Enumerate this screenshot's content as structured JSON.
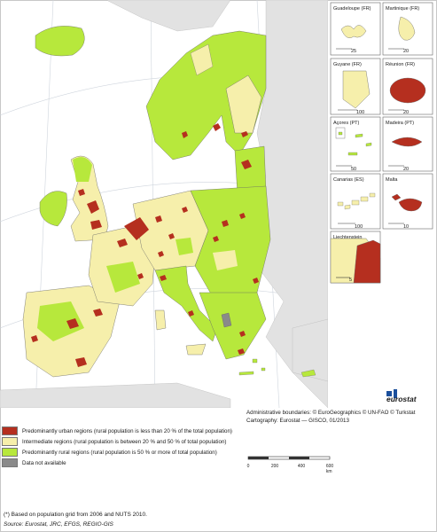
{
  "colors": {
    "urban": "#b52f1f",
    "intermediate": "#f6efab",
    "rural": "#b7e83c",
    "na": "#8a8a8a",
    "non_eu": "#e2e2e2",
    "sea": "#ffffff",
    "graticule": "#cfd5dd"
  },
  "insets": [
    {
      "label": "Guadeloupe (FR)",
      "scale_max": "25"
    },
    {
      "label": "Martinique (FR)",
      "scale_max": "20"
    },
    {
      "label": "Guyane (FR)",
      "scale_max": "100"
    },
    {
      "label": "Réunion (FR)",
      "scale_max": "20"
    },
    {
      "label": "Açores (PT)",
      "scale_max": "50"
    },
    {
      "label": "Madeira (PT)",
      "scale_max": "20"
    },
    {
      "label": "Canarias (ES)",
      "scale_max": "100"
    },
    {
      "label": "Malta",
      "scale_max": "10"
    },
    {
      "label": "Liechtenstein",
      "scale_max": "5"
    }
  ],
  "legend": [
    {
      "key": "urban",
      "label": "Predominantly urban regions (rural population is less than 20 % of the total population)"
    },
    {
      "key": "intermediate",
      "label": "Intermediate regions (rural population is between 20 % and 50 % of total population)"
    },
    {
      "key": "rural",
      "label": "Predominantly rural regions (rural population is 50 % or more of total population)"
    },
    {
      "key": "na",
      "label": "Data not available"
    }
  ],
  "credits": {
    "boundaries": "Administrative boundaries: © EuroGeographics © UN-FAO © Turkstat",
    "cartography": "Cartography: Eurostat — GISCO, 01/2013"
  },
  "scale": {
    "ticks": [
      "0",
      "200",
      "400",
      "600 km"
    ]
  },
  "logo": "eurostat",
  "footnote": "(*) Based on population grid from 2006 and NUTS 2010.",
  "source": "Source: Eurostat, JRC, EFGS, REGIO-GIS"
}
